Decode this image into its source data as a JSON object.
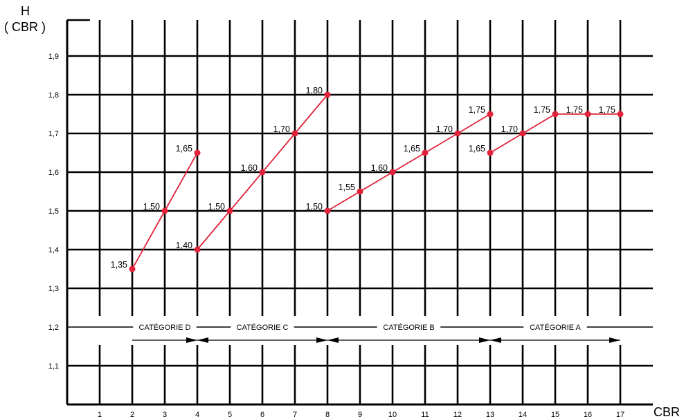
{
  "chart_data": {
    "type": "line",
    "ytitle_top": "H",
    "ytitle_bottom": "( CBR )",
    "xtitle": "CBR",
    "xlim": [
      0,
      18
    ],
    "ylim": [
      1.0,
      2.0
    ],
    "x_ticks": [
      1,
      2,
      3,
      4,
      5,
      6,
      7,
      8,
      9,
      10,
      11,
      12,
      13,
      14,
      15,
      16,
      17
    ],
    "x_tick_labels": [
      "1",
      "2",
      "3",
      "4",
      "5",
      "6",
      "7",
      "8",
      "9",
      "10",
      "11",
      "12",
      "13",
      "14",
      "15",
      "16",
      "17"
    ],
    "y_ticks": [
      1.1,
      1.2,
      1.3,
      1.4,
      1.5,
      1.6,
      1.7,
      1.8,
      1.9
    ],
    "y_tick_labels": [
      "1,1",
      "1,2",
      "1,3",
      "1,4",
      "1,5",
      "1,6",
      "1,7",
      "1,8",
      "1,9"
    ],
    "grid": true,
    "line_color": "#e0223a",
    "series": [
      {
        "points": [
          {
            "x": 2,
            "y": 1.35,
            "label": "1,35"
          },
          {
            "x": 3,
            "y": 1.5,
            "label": "1,50"
          },
          {
            "x": 4,
            "y": 1.65,
            "label": "1,65"
          }
        ]
      },
      {
        "points": [
          {
            "x": 4,
            "y": 1.4,
            "label": "1,40"
          },
          {
            "x": 5,
            "y": 1.5,
            "label": "1,50"
          },
          {
            "x": 6,
            "y": 1.6,
            "label": "1,60"
          },
          {
            "x": 7,
            "y": 1.7,
            "label": "1,70"
          },
          {
            "x": 8,
            "y": 1.8,
            "label": "1,80"
          }
        ]
      },
      {
        "points": [
          {
            "x": 8,
            "y": 1.5,
            "label": "1,50"
          },
          {
            "x": 9,
            "y": 1.55,
            "label": "1,55"
          },
          {
            "x": 10,
            "y": 1.6,
            "label": "1,60"
          },
          {
            "x": 11,
            "y": 1.65,
            "label": "1,65"
          },
          {
            "x": 12,
            "y": 1.7,
            "label": "1,70"
          },
          {
            "x": 13,
            "y": 1.75,
            "label": "1,75"
          }
        ]
      },
      {
        "points": [
          {
            "x": 13,
            "y": 1.65,
            "label": "1,65"
          },
          {
            "x": 14,
            "y": 1.7,
            "label": "1,70"
          },
          {
            "x": 15,
            "y": 1.75,
            "label": "1,75"
          },
          {
            "x": 16,
            "y": 1.75,
            "label": "1,75"
          },
          {
            "x": 17,
            "y": 1.75,
            "label": "1,75"
          }
        ]
      }
    ],
    "categories": [
      {
        "label": "CATÉGORIE D",
        "from": 2,
        "to": 4
      },
      {
        "label": "CATÉGORIE C",
        "from": 4,
        "to": 8
      },
      {
        "label": "CATÉGORIE B",
        "from": 8,
        "to": 13
      },
      {
        "label": "CATÉGORIE A",
        "from": 13,
        "to": 17
      }
    ],
    "category_y": 1.2
  }
}
